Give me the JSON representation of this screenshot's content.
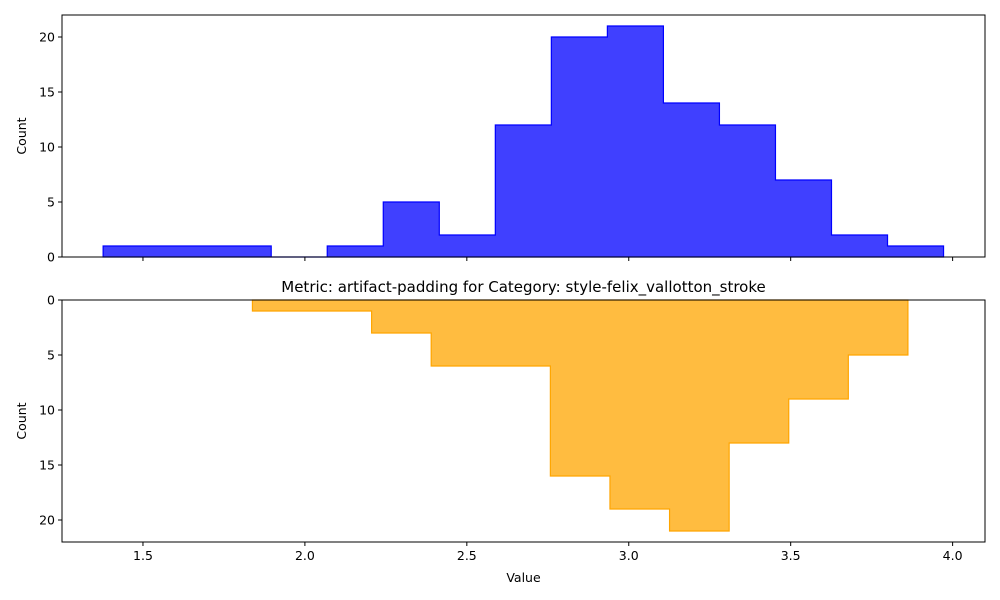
{
  "chart_data": [
    {
      "type": "histogram",
      "title": "",
      "xlabel": "",
      "ylabel": "Count",
      "xlim": [
        1.25,
        4.1
      ],
      "ylim": [
        0,
        22
      ],
      "y_inverted": false,
      "xticks": [
        1.5,
        2.0,
        2.5,
        3.0,
        3.5,
        4.0
      ],
      "yticks": [
        0,
        5,
        10,
        15,
        20
      ],
      "tick_labels_x_visible": false,
      "color": "#0000ff",
      "bin_edges": [
        1.377,
        1.55,
        1.723,
        1.896,
        2.069,
        2.242,
        2.415,
        2.588,
        2.761,
        2.934,
        3.107,
        3.28,
        3.453,
        3.626,
        3.799,
        3.972
      ],
      "counts": [
        1,
        1,
        1,
        0,
        1,
        5,
        2,
        12,
        20,
        21,
        14,
        12,
        7,
        2,
        1
      ]
    },
    {
      "type": "histogram",
      "title": "Metric: artifact-padding for Category: style-felix_vallotton_stroke",
      "xlabel": "Value",
      "ylabel": "Count",
      "xlim": [
        1.25,
        4.1
      ],
      "ylim": [
        0,
        22
      ],
      "y_inverted": true,
      "xticks": [
        1.5,
        2.0,
        2.5,
        3.0,
        3.5,
        4.0
      ],
      "yticks": [
        0,
        5,
        10,
        15,
        20
      ],
      "tick_labels_x_visible": true,
      "color": "#ffa500",
      "bin_edges": [
        1.838,
        2.022,
        2.206,
        2.39,
        2.574,
        2.758,
        2.942,
        3.126,
        3.31,
        3.494,
        3.678,
        3.862
      ],
      "counts": [
        1,
        1,
        3,
        6,
        6,
        16,
        19,
        21,
        13,
        9,
        5
      ]
    }
  ]
}
